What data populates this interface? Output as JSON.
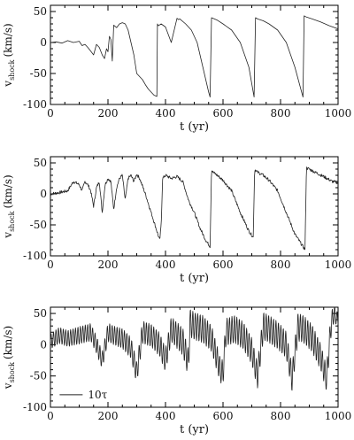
{
  "chart_data": [
    {
      "type": "line",
      "xlabel": "t (yr)",
      "ylabel": "v",
      "ylabel_sub": "shock",
      "ylabel_unit": "(km/s)",
      "xlim": [
        0,
        1000
      ],
      "ylim": [
        -100,
        60
      ],
      "xticks": [
        "0",
        "200",
        "400",
        "600",
        "800",
        "1000"
      ],
      "yticks": [
        "50",
        "0",
        "-50",
        "-100"
      ],
      "grid": false,
      "series": [
        {
          "style": "smooth",
          "x": [
            0,
            20,
            40,
            60,
            80,
            100,
            110,
            120,
            130,
            140,
            150,
            160,
            170,
            180,
            188,
            195,
            200,
            205,
            210,
            215,
            220,
            230,
            240,
            250,
            260,
            270,
            280,
            290,
            300,
            310,
            320,
            330,
            340,
            350,
            360,
            370,
            372,
            375,
            385,
            400,
            420,
            440,
            445,
            450,
            470,
            490,
            510,
            530,
            550,
            555,
            560,
            580,
            600,
            630,
            660,
            690,
            708,
            713,
            720,
            740,
            760,
            790,
            820,
            850,
            878,
            882,
            890,
            910,
            940,
            970,
            1000
          ],
          "y": [
            0,
            1,
            -1,
            3,
            0,
            2,
            -5,
            -3,
            -8,
            -14,
            -20,
            -3,
            -8,
            -20,
            -26,
            -10,
            -15,
            10,
            5,
            -30,
            28,
            24,
            30,
            32,
            30,
            20,
            0,
            -20,
            -50,
            -55,
            -60,
            -68,
            -75,
            -80,
            -85,
            -87,
            30,
            27,
            30,
            25,
            0,
            39,
            37,
            38,
            30,
            20,
            0,
            -40,
            -80,
            -88,
            40,
            36,
            30,
            20,
            0,
            -40,
            -88,
            40,
            38,
            35,
            30,
            20,
            0,
            -40,
            -88,
            43,
            41,
            38,
            33,
            27,
            22
          ]
        }
      ]
    },
    {
      "type": "line",
      "xlabel": "t (yr)",
      "ylabel": "v",
      "ylabel_sub": "shock",
      "ylabel_unit": "(km/s)",
      "xlim": [
        0,
        1000
      ],
      "ylim": [
        -100,
        60
      ],
      "xticks": [
        "0",
        "200",
        "400",
        "600",
        "800",
        "1000"
      ],
      "yticks": [
        "50",
        "0",
        "-50",
        "-100"
      ],
      "grid": false,
      "series": [
        {
          "style": "noisy",
          "x": [
            0,
            30,
            60,
            80,
            100,
            110,
            120,
            130,
            140,
            150,
            160,
            170,
            180,
            190,
            200,
            210,
            220,
            230,
            240,
            250,
            260,
            270,
            280,
            290,
            300,
            310,
            330,
            350,
            370,
            380,
            385,
            390,
            400,
            420,
            440,
            460,
            480,
            500,
            520,
            540,
            555,
            560,
            565,
            580,
            600,
            630,
            660,
            690,
            705,
            710,
            720,
            740,
            760,
            790,
            820,
            850,
            885,
            890,
            900,
            920,
            950,
            980,
            1000
          ],
          "y": [
            0,
            2,
            5,
            20,
            15,
            5,
            20,
            15,
            5,
            -20,
            10,
            20,
            -30,
            15,
            25,
            20,
            -25,
            10,
            25,
            30,
            -10,
            25,
            30,
            20,
            32,
            25,
            0,
            -30,
            -60,
            -75,
            -50,
            25,
            30,
            25,
            28,
            20,
            -10,
            -30,
            -55,
            -75,
            -85,
            40,
            35,
            30,
            22,
            5,
            -30,
            -60,
            -70,
            40,
            35,
            30,
            22,
            5,
            -30,
            -65,
            -90,
            42,
            40,
            35,
            28,
            20,
            18
          ]
        }
      ]
    },
    {
      "type": "line",
      "xlabel": "t (yr)",
      "ylabel": "v",
      "ylabel_sub": "shock",
      "ylabel_unit": "(km/s)",
      "xlim": [
        0,
        1000
      ],
      "ylim": [
        -100,
        60
      ],
      "xticks": [
        "0",
        "200",
        "400",
        "600",
        "800",
        "1000"
      ],
      "yticks": [
        "50",
        "0",
        "-50",
        "-100"
      ],
      "grid": false,
      "legend": {
        "label": "10τ",
        "placement": "lower-left"
      },
      "series": [
        {
          "style": "oscillating",
          "x": [
            0,
            30,
            60,
            100,
            140,
            160,
            180,
            200,
            220,
            250,
            280,
            300,
            320,
            350,
            380,
            400,
            420,
            440,
            460,
            480,
            485,
            500,
            530,
            560,
            590,
            600,
            610,
            640,
            670,
            700,
            720,
            740,
            760,
            790,
            820,
            840,
            860,
            880,
            910,
            940,
            960,
            975,
            985,
            1000
          ],
          "y": [
            5,
            15,
            10,
            15,
            20,
            0,
            -25,
            20,
            15,
            10,
            -5,
            -45,
            20,
            15,
            0,
            -25,
            25,
            15,
            5,
            -30,
            35,
            30,
            25,
            10,
            -40,
            -45,
            20,
            25,
            15,
            -10,
            -50,
            30,
            25,
            15,
            0,
            -55,
            28,
            25,
            10,
            -20,
            -55,
            30,
            50,
            40
          ],
          "amp": [
            12,
            13,
            13,
            14,
            14,
            14,
            14,
            15,
            15,
            16,
            17,
            18,
            18,
            18,
            19,
            19,
            20,
            21,
            22,
            22,
            22,
            22,
            22,
            21,
            20,
            20,
            22,
            22,
            22,
            21,
            20,
            22,
            22,
            22,
            21,
            20,
            22,
            22,
            22,
            21,
            20,
            20,
            15,
            10
          ]
        }
      ]
    }
  ]
}
